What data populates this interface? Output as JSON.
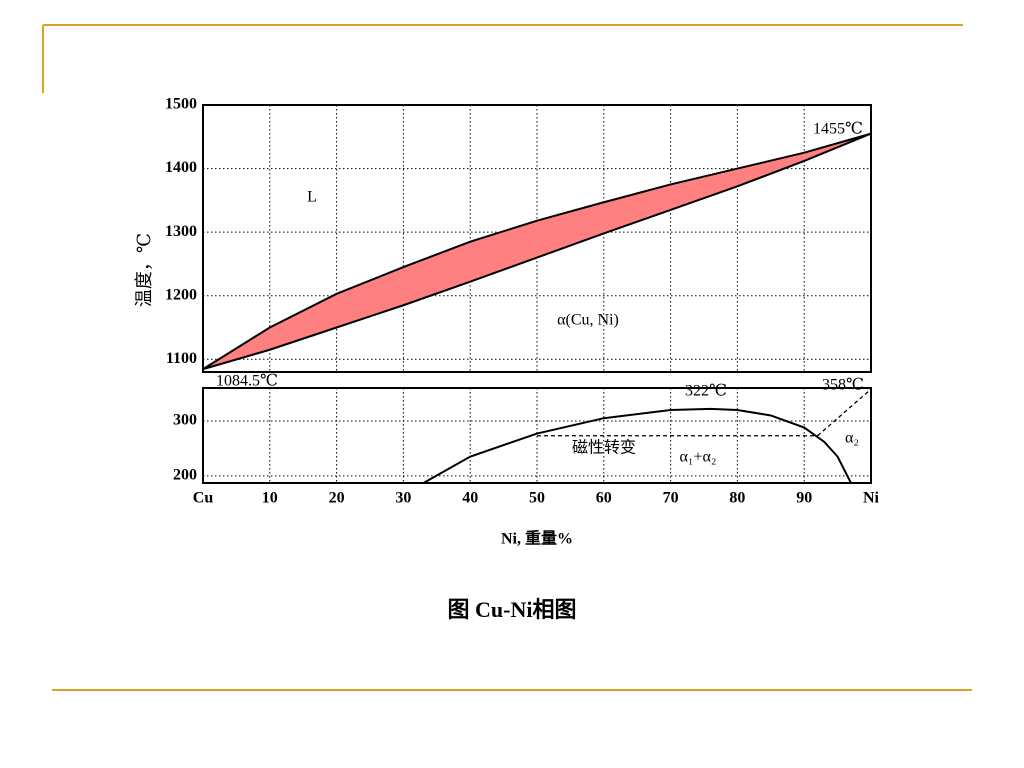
{
  "caption": "图  Cu-Ni相图",
  "chart_data": [
    {
      "type": "line",
      "y_label": "温度，℃",
      "fill_color": "#ff8080",
      "x": [
        0,
        10,
        20,
        30,
        40,
        50,
        60,
        70,
        80,
        90,
        100
      ],
      "series": [
        {
          "color": "#000000",
          "values": [
            1084.5,
            1150,
            1203,
            1245,
            1285,
            1318,
            1347,
            1375,
            1400,
            1425,
            1455
          ]
        },
        {
          "color": "#000000",
          "values": [
            1084.5,
            1115,
            1150,
            1185,
            1222,
            1260,
            1298,
            1335,
            1372,
            1412,
            1455
          ]
        }
      ],
      "ylim": [
        1080,
        1500
      ],
      "yticks": [
        1100,
        1200,
        1300,
        1400,
        1500
      ],
      "grid": true,
      "annotations": [
        "L",
        "α(Cu, Ni)",
        "1455℃",
        "1084.5℃"
      ]
    },
    {
      "type": "line",
      "x_label": "Ni, 重量%",
      "series": [
        {
          "color": "#000000",
          "x": [
            33,
            40,
            50,
            60,
            70,
            76,
            80,
            85,
            90,
            93,
            95,
            97
          ],
          "values": [
            187,
            235,
            277,
            305,
            320,
            322,
            320,
            310,
            288,
            262,
            235,
            187
          ]
        },
        {
          "color": "#000000",
          "dashed": true,
          "x": [
            50,
            92
          ],
          "values": [
            273,
            273
          ]
        },
        {
          "color": "#000000",
          "dashed": true,
          "x": [
            92,
            100
          ],
          "values": [
            273,
            358
          ]
        }
      ],
      "xlim": [
        0,
        100
      ],
      "xticks": [
        {
          "value": 0,
          "label": "Cu"
        },
        10,
        20,
        30,
        40,
        50,
        60,
        70,
        80,
        90,
        {
          "value": 100,
          "label": "Ni"
        }
      ],
      "ylim": [
        187,
        360
      ],
      "yticks": [
        200,
        300
      ],
      "grid": true,
      "annotations": [
        "322℃",
        "358℃",
        "磁性转变",
        "α₁+α₂",
        "α₂"
      ]
    }
  ]
}
